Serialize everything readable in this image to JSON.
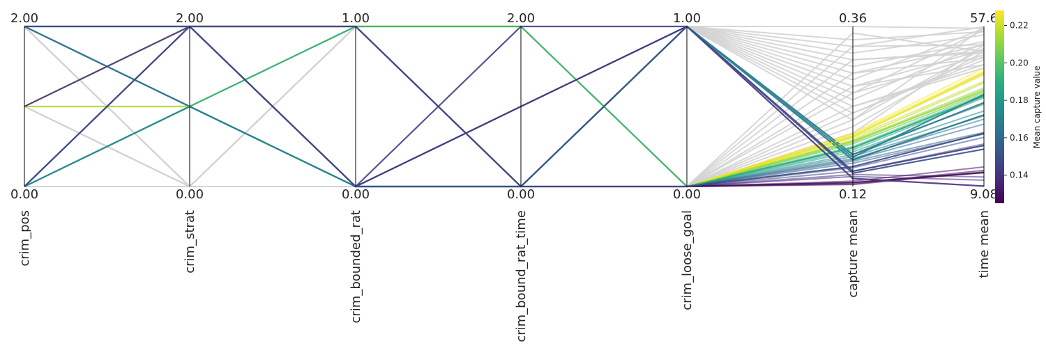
{
  "chart_data": {
    "type": "parallel_coordinates",
    "axes": [
      {
        "name": "crim_pos",
        "min": "0.00",
        "max": "2.00",
        "range": [
          0,
          2
        ]
      },
      {
        "name": "crim_strat",
        "min": "0.00",
        "max": "2.00",
        "range": [
          0,
          2
        ]
      },
      {
        "name": "crim_bounded_rat",
        "min": "0.00",
        "max": "1.00",
        "range": [
          0,
          1
        ]
      },
      {
        "name": "crim_bound_rat_time",
        "min": "0.00",
        "max": "2.00",
        "range": [
          0,
          2
        ]
      },
      {
        "name": "crim_loose_goal",
        "min": "0.00",
        "max": "1.00",
        "range": [
          0,
          1
        ]
      },
      {
        "name": "capture mean",
        "min": "0.12",
        "max": "0.36",
        "range": [
          0.12,
          0.36
        ]
      },
      {
        "name": "time mean",
        "min": "9.08",
        "max": "57.6",
        "range": [
          9.08,
          57.6
        ]
      }
    ],
    "colorbar": {
      "label": "Mean capture value",
      "colormap": "viridis",
      "range": [
        0.125,
        0.228
      ],
      "ticks": [
        "0.14",
        "0.16",
        "0.18",
        "0.20",
        "0.22"
      ],
      "tick_values": [
        0.14,
        0.16,
        0.18,
        0.2,
        0.22
      ]
    },
    "grey_color": "#d3d3d3",
    "colored_lines": [
      {
        "c": 0.165,
        "values": [
          2,
          1,
          0,
          0,
          1,
          0.168,
          34.5
        ]
      },
      {
        "c": 0.165,
        "values": [
          2,
          1,
          0,
          0,
          1,
          0.16,
          30.8
        ]
      },
      {
        "c": 0.215,
        "values": [
          1,
          1,
          1,
          2,
          0,
          0.188,
          38.0
        ]
      },
      {
        "c": 0.225,
        "values": [
          1,
          2,
          1,
          2,
          0,
          0.195,
          43.5
        ]
      },
      {
        "c": 0.19,
        "values": [
          0,
          1,
          1,
          2,
          0,
          0.178,
          36.5
        ]
      },
      {
        "c": 0.172,
        "values": [
          0,
          1,
          0,
          1,
          1,
          0.164,
          37.0
        ]
      },
      {
        "c": 0.128,
        "values": [
          0,
          2,
          1,
          0,
          0,
          0.126,
          13.3
        ]
      },
      {
        "c": 0.14,
        "values": [
          1,
          2,
          0,
          1,
          1,
          0.132,
          9.2
        ]
      },
      {
        "c": 0.145,
        "values": [
          2,
          2,
          0,
          2,
          1,
          0.143,
          21.5
        ]
      },
      {
        "c": 0.148,
        "values": [
          2,
          2,
          0,
          0,
          0,
          0.15,
          25.2
        ]
      },
      {
        "c": 0.15,
        "values": [
          0,
          2,
          1,
          0,
          1,
          0.14,
          20.4
        ]
      }
    ],
    "loose_goal_fan": [
      {
        "c": 0.228,
        "cm": 0.2,
        "tm": 45.0
      },
      {
        "c": 0.225,
        "cm": 0.198,
        "tm": 44.0
      },
      {
        "c": 0.222,
        "cm": 0.196,
        "tm": 43.0
      },
      {
        "c": 0.22,
        "cm": 0.193,
        "tm": 41.0
      },
      {
        "c": 0.216,
        "cm": 0.19,
        "tm": 40.5
      },
      {
        "c": 0.212,
        "cm": 0.188,
        "tm": 39.0
      },
      {
        "c": 0.205,
        "cm": 0.186,
        "tm": 38.5
      },
      {
        "c": 0.2,
        "cm": 0.184,
        "tm": 37.5
      },
      {
        "c": 0.195,
        "cm": 0.18,
        "tm": 37.0
      },
      {
        "c": 0.19,
        "cm": 0.178,
        "tm": 36.5
      },
      {
        "c": 0.185,
        "cm": 0.175,
        "tm": 36.0
      },
      {
        "c": 0.18,
        "cm": 0.172,
        "tm": 34.0
      },
      {
        "c": 0.176,
        "cm": 0.168,
        "tm": 32.0
      },
      {
        "c": 0.17,
        "cm": 0.165,
        "tm": 30.5
      },
      {
        "c": 0.166,
        "cm": 0.162,
        "tm": 29.5
      },
      {
        "c": 0.162,
        "cm": 0.16,
        "tm": 28.0
      },
      {
        "c": 0.16,
        "cm": 0.158,
        "tm": 25.5
      },
      {
        "c": 0.156,
        "cm": 0.155,
        "tm": 25.0
      },
      {
        "c": 0.15,
        "cm": 0.148,
        "tm": 24.0
      },
      {
        "c": 0.145,
        "cm": 0.143,
        "tm": 22.0
      },
      {
        "c": 0.14,
        "cm": 0.138,
        "tm": 12.0
      },
      {
        "c": 0.136,
        "cm": 0.135,
        "tm": 11.0
      },
      {
        "c": 0.132,
        "cm": 0.128,
        "tm": 15.0
      },
      {
        "c": 0.128,
        "cm": 0.124,
        "tm": 14.0
      },
      {
        "c": 0.126,
        "cm": 0.123,
        "tm": 13.5
      }
    ],
    "grey_lines": [
      [
        2,
        0,
        1,
        0,
        1,
        0.36,
        57.0
      ],
      [
        2,
        0,
        1,
        0,
        1,
        0.34,
        56.0
      ],
      [
        2,
        0,
        1,
        0,
        1,
        0.33,
        52.0
      ],
      [
        1,
        0,
        1,
        0,
        1,
        0.32,
        55.0
      ],
      [
        1,
        0,
        1,
        0,
        1,
        0.31,
        50.0
      ],
      [
        0,
        0,
        1,
        0,
        1,
        0.3,
        53.0
      ],
      [
        0,
        0,
        1,
        0,
        1,
        0.29,
        48.0
      ],
      [
        0,
        0,
        1,
        0,
        1,
        0.28,
        57.0
      ],
      [
        0,
        0,
        1,
        0,
        1,
        0.27,
        46.0
      ],
      [
        2,
        0,
        1,
        0,
        1,
        0.26,
        49.0
      ],
      [
        1,
        0,
        1,
        0,
        1,
        0.25,
        52.5
      ],
      [
        0,
        0,
        1,
        0,
        1,
        0.24,
        45.0
      ],
      [
        2,
        0,
        1,
        0,
        1,
        0.23,
        47.5
      ],
      [
        1,
        0,
        1,
        0,
        1,
        0.22,
        51.0
      ],
      [
        2,
        0,
        0,
        0,
        0,
        0.35,
        50.0
      ],
      [
        1,
        0,
        0,
        0,
        0,
        0.33,
        57.5
      ],
      [
        0,
        0,
        0,
        0,
        0,
        0.31,
        49.5
      ],
      [
        2,
        0,
        0,
        0,
        0,
        0.29,
        52.0
      ],
      [
        1,
        0,
        0,
        0,
        0,
        0.27,
        50.5
      ],
      [
        0,
        0,
        0,
        0,
        0,
        0.26,
        56.5
      ],
      [
        2,
        0,
        0,
        0,
        0,
        0.24,
        46.0
      ],
      [
        0,
        0,
        0,
        0,
        0,
        0.23,
        48.5
      ],
      [
        1,
        0,
        0,
        0,
        0,
        0.22,
        57.2
      ],
      [
        0,
        0,
        0,
        0,
        0,
        0.21,
        50.0
      ],
      [
        2,
        0,
        0,
        0,
        0,
        0.2,
        52.0
      ]
    ]
  }
}
